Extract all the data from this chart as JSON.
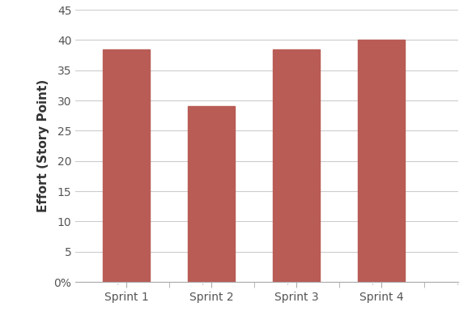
{
  "categories": [
    "Sprint 1",
    "Sprint 2",
    "Sprint 3",
    "Sprint 4"
  ],
  "values": [
    38.5,
    29.0,
    38.5,
    40.0
  ],
  "bar_color": "#b85c55",
  "ylabel": "Effort (Story Point)",
  "ylim": [
    0,
    45
  ],
  "yticks": [
    0,
    5,
    10,
    15,
    20,
    25,
    30,
    35,
    40,
    45
  ],
  "ytick_labels": [
    "0%",
    "5",
    "10",
    "15",
    "20",
    "25",
    "30",
    "35",
    "40",
    "45"
  ],
  "background_color": "#ffffff",
  "grid_color": "#cccccc",
  "bar_width": 0.55,
  "ylabel_fontsize": 11,
  "tick_fontsize": 10,
  "xlabel_color": "#555555",
  "ylabel_color": "#333333"
}
